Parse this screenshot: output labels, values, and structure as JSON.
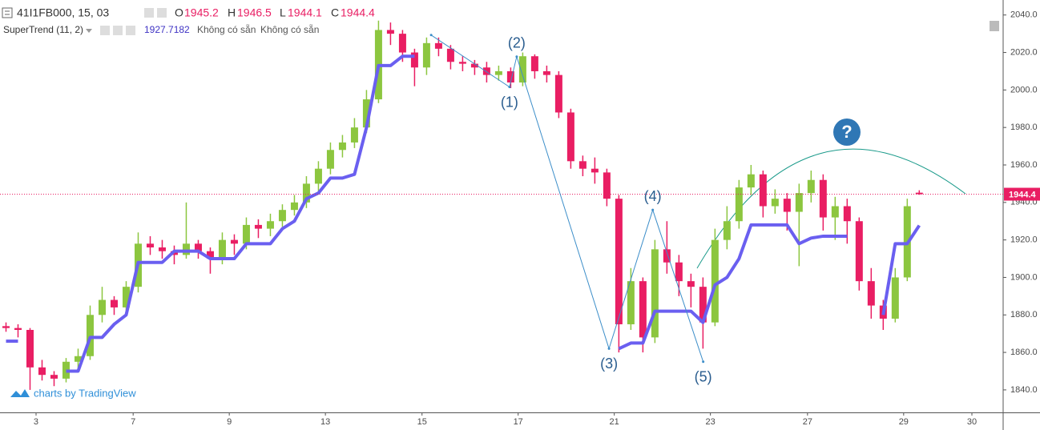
{
  "chart_data": {
    "type": "candlestick",
    "symbol_title": "41I1FB000, 15, 03",
    "ohlc_labels": [
      "O",
      "H",
      "L",
      "C"
    ],
    "not_available": [
      "Không có sẵn",
      "Không có sẵn"
    ],
    "watermark": "charts by TradingView",
    "annotation": "?",
    "up_color": "#8cc63f",
    "down_color": "#e91e63",
    "x": [
      0.125,
      0.375,
      0.625,
      0.875,
      1.125,
      1.375,
      1.625,
      1.875,
      2.125,
      2.375,
      2.625,
      2.875,
      3.125,
      3.375,
      3.625,
      3.875,
      4.125,
      4.375,
      4.625,
      4.875,
      5.125,
      5.375,
      5.625,
      5.875,
      6.125,
      6.375,
      6.625,
      6.875,
      7.125,
      7.375,
      7.625,
      7.875,
      8.125,
      8.375,
      8.625,
      8.875,
      9.125,
      9.375,
      9.625,
      9.875,
      10.125,
      10.375,
      10.625,
      10.875,
      11.125,
      11.375,
      11.625,
      11.875,
      12.125,
      12.375,
      12.625,
      12.875,
      13.125,
      13.375,
      13.625,
      13.875,
      14.125,
      14.375,
      14.625,
      14.875,
      15.125,
      15.375,
      15.625,
      15.875,
      16.125,
      16.375,
      16.625,
      16.875,
      17.125,
      17.375,
      17.625,
      17.875,
      18.125,
      18.375,
      18.625,
      18.875,
      19.125
    ],
    "open": [
      1874,
      1873,
      1872,
      1852,
      1848,
      1846,
      1855,
      1858,
      1880,
      1888,
      1884,
      1895,
      1918,
      1916,
      1914,
      1912,
      1918,
      1914,
      1910,
      1920,
      1918,
      1928,
      1926,
      1930,
      1936,
      1940,
      1950,
      1958,
      1968,
      1972,
      1980,
      1995,
      2032,
      2030,
      2020,
      2012,
      2025,
      2022,
      2015,
      2014,
      2012,
      2008,
      2010,
      2004,
      2018,
      2010,
      2008,
      1988,
      1962,
      1958,
      1956,
      1942,
      1875,
      1898,
      1868,
      1915,
      1908,
      1898,
      1895,
      1876,
      1920,
      1930,
      1948,
      1955,
      1938,
      1942,
      1935,
      1945,
      1952,
      1932,
      1938,
      1930,
      1898,
      1885,
      1878,
      1900,
      1945.2
    ],
    "high": [
      1876,
      1875,
      1873,
      1856,
      1850,
      1857,
      1862,
      1885,
      1895,
      1890,
      1898,
      1924,
      1922,
      1920,
      1917,
      1940,
      1920,
      1916,
      1924,
      1923,
      1932,
      1931,
      1934,
      1939,
      1944,
      1954,
      1962,
      1972,
      1976,
      1985,
      2000,
      2037,
      2036,
      2032,
      2022,
      2028,
      2028,
      2024,
      2018,
      2016,
      2015,
      2013,
      2012,
      2020,
      2019,
      2013,
      2010,
      1990,
      1965,
      1964,
      1958,
      1944,
      1905,
      1900,
      1920,
      1930,
      1912,
      1902,
      1900,
      1926,
      1938,
      1952,
      1960,
      1957,
      1947,
      1945,
      1950,
      1957,
      1955,
      1943,
      1942,
      1932,
      1905,
      1888,
      1905,
      1942,
      1946.5
    ],
    "low": [
      1871,
      1868,
      1840,
      1845,
      1842,
      1844,
      1850,
      1856,
      1876,
      1880,
      1882,
      1892,
      1912,
      1910,
      1907,
      1910,
      1910,
      1902,
      1907,
      1912,
      1915,
      1921,
      1922,
      1927,
      1933,
      1937,
      1946,
      1955,
      1964,
      1969,
      1977,
      1993,
      2024,
      2015,
      2002,
      2008,
      2018,
      2011,
      2010,
      2008,
      2004,
      2005,
      2001,
      2002,
      2006,
      2004,
      1985,
      1958,
      1954,
      1950,
      1938,
      1860,
      1872,
      1860,
      1865,
      1902,
      1890,
      1884,
      1862,
      1874,
      1915,
      1926,
      1944,
      1932,
      1934,
      1925,
      1906,
      1940,
      1925,
      1920,
      1918,
      1893,
      1878,
      1872,
      1876,
      1898,
      1944.1
    ],
    "close": [
      1873,
      1872,
      1852,
      1848,
      1846,
      1855,
      1858,
      1880,
      1888,
      1884,
      1895,
      1918,
      1916,
      1914,
      1912,
      1918,
      1914,
      1910,
      1920,
      1918,
      1928,
      1926,
      1930,
      1936,
      1940,
      1950,
      1958,
      1968,
      1972,
      1980,
      1995,
      2032,
      2030,
      2020,
      2012,
      2025,
      2022,
      2015,
      2014,
      2012,
      2008,
      2010,
      2004,
      2018,
      2010,
      2008,
      1988,
      1962,
      1958,
      1956,
      1942,
      1875,
      1898,
      1868,
      1915,
      1908,
      1898,
      1895,
      1876,
      1920,
      1930,
      1948,
      1955,
      1938,
      1942,
      1935,
      1945,
      1952,
      1932,
      1938,
      1930,
      1898,
      1885,
      1878,
      1900,
      1938,
      1944.4
    ],
    "supertrend": {
      "name": "SuperTrend (11, 2)",
      "color": "#6a5ff0",
      "values": [
        1866,
        1866,
        null,
        null,
        null,
        1850,
        1850,
        1868,
        1868,
        1875,
        1880,
        1908,
        1908,
        1908,
        1914,
        1914,
        1914,
        1910,
        1910,
        1910,
        1918,
        1918,
        1918,
        1926,
        1930,
        1942,
        1945,
        1953,
        1953,
        1955,
        1980,
        2013,
        2013,
        2018,
        2018,
        null,
        null,
        null,
        null,
        null,
        null,
        null,
        null,
        null,
        null,
        null,
        null,
        null,
        null,
        null,
        null,
        1862,
        1865,
        1865,
        1882,
        1882,
        1882,
        1882,
        1876,
        1896,
        1900,
        1910,
        1928,
        1928,
        1928,
        1928,
        1918,
        1921,
        1922,
        1922,
        1922,
        null,
        null,
        1880,
        1918,
        1918,
        1927.7182
      ]
    },
    "wave": {
      "color": "#3d8ec9",
      "label_color": "#2a5d8f",
      "labels": [
        null,
        "(1)",
        "(2)",
        "(3)",
        "(4)",
        "(5)"
      ],
      "x": [
        8.97,
        10.6,
        10.75,
        12.67,
        13.58,
        14.63
      ],
      "y": [
        2029.3,
        2001.6,
        2017.8,
        1862,
        1936,
        1855
      ]
    },
    "xlim": [
      0,
      20.87
    ],
    "xticks": [
      {
        "value": 0.75,
        "label": "3"
      },
      {
        "value": 2.77,
        "label": "7"
      },
      {
        "value": 4.77,
        "label": "9"
      },
      {
        "value": 6.77,
        "label": "13"
      },
      {
        "value": 8.78,
        "label": "15"
      },
      {
        "value": 10.78,
        "label": "17"
      },
      {
        "value": 12.78,
        "label": "21"
      },
      {
        "value": 14.78,
        "label": "23"
      },
      {
        "value": 16.8,
        "label": "27"
      },
      {
        "value": 18.8,
        "label": "29"
      },
      {
        "value": 20.22,
        "label": "30"
      }
    ],
    "ylim": [
      1828,
      2048
    ],
    "yticks": [
      {
        "value": 1840,
        "label": "1840.0"
      },
      {
        "value": 1860,
        "label": "1860.0"
      },
      {
        "value": 1880,
        "label": "1880.0"
      },
      {
        "value": 1900,
        "label": "1900.0"
      },
      {
        "value": 1920,
        "label": "1920.0"
      },
      {
        "value": 1940,
        "label": "1940.0"
      },
      {
        "value": 1960,
        "label": "1960.0"
      },
      {
        "value": 1980,
        "label": "1980.0"
      },
      {
        "value": 2000,
        "label": "2000.0"
      },
      {
        "value": 2020,
        "label": "2020.0"
      },
      {
        "value": 2040,
        "label": "2040.0"
      }
    ]
  }
}
